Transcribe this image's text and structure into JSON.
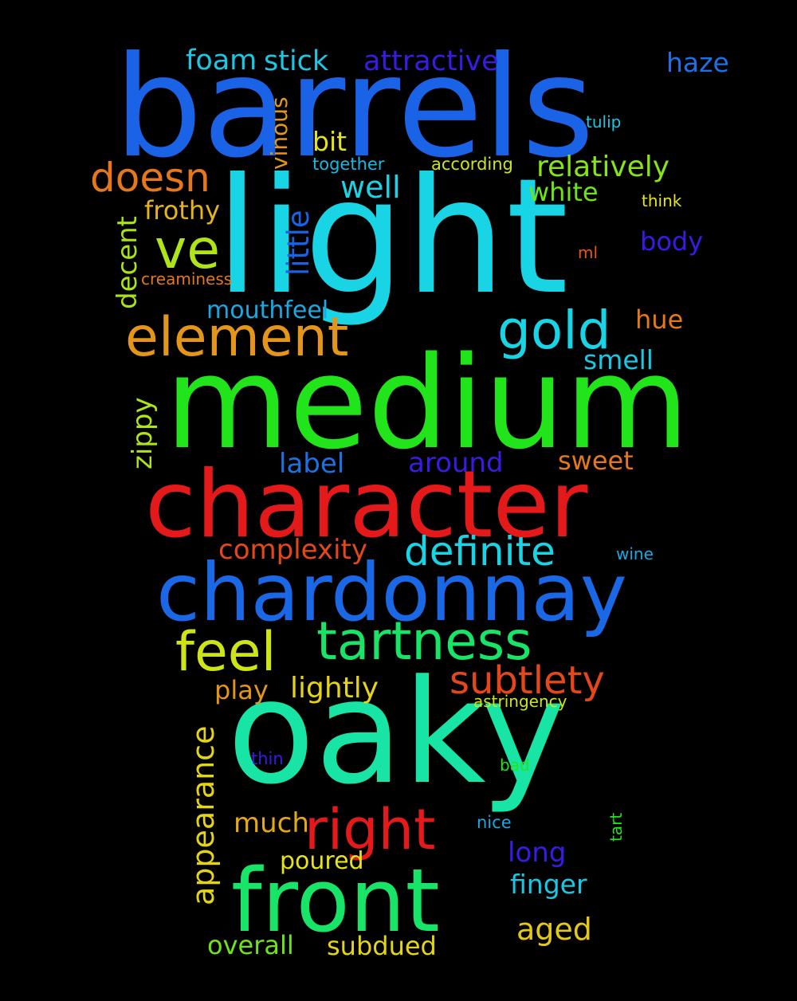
{
  "words": [
    {
      "text": "barrels",
      "color": "#1a62e6"
    },
    {
      "text": "light",
      "color": "#18d4e4"
    },
    {
      "text": "medium",
      "color": "#22e41a"
    },
    {
      "text": "character",
      "color": "#e41a1a"
    },
    {
      "text": "chardonnay",
      "color": "#1a68e6"
    },
    {
      "text": "oaky",
      "color": "#18e4a6"
    },
    {
      "text": "front",
      "color": "#18e468"
    },
    {
      "text": "tartness",
      "color": "#18e468"
    },
    {
      "text": "feel",
      "color": "#cde418"
    },
    {
      "text": "right",
      "color": "#e41a1a"
    },
    {
      "text": "element",
      "color": "#e4961a"
    },
    {
      "text": "gold",
      "color": "#18d4e4"
    },
    {
      "text": "ve",
      "color": "#aee418"
    },
    {
      "text": "definite",
      "color": "#18d4e4"
    },
    {
      "text": "subtlety",
      "color": "#e4481a"
    },
    {
      "text": "doesn",
      "color": "#e4781a"
    },
    {
      "text": "appearance",
      "color": "#e4d418"
    },
    {
      "text": "attractive",
      "color": "#3a1ae4"
    },
    {
      "text": "relatively",
      "color": "#86e418"
    },
    {
      "text": "well",
      "color": "#18d4e4"
    },
    {
      "text": "foam",
      "color": "#18c8e4"
    },
    {
      "text": "stick",
      "color": "#18c8e4"
    },
    {
      "text": "haze",
      "color": "#1a72e6"
    },
    {
      "text": "little",
      "color": "#1a62e6"
    },
    {
      "text": "complexity",
      "color": "#e4481a"
    },
    {
      "text": "lightly",
      "color": "#e4d418"
    },
    {
      "text": "around",
      "color": "#3a1ae4"
    },
    {
      "text": "label",
      "color": "#1a72e6"
    },
    {
      "text": "sweet",
      "color": "#e4781a"
    },
    {
      "text": "mouthfeel",
      "color": "#18a8e4"
    },
    {
      "text": "smell",
      "color": "#18c8e4"
    },
    {
      "text": "hue",
      "color": "#e4781a"
    },
    {
      "text": "body",
      "color": "#3a1ae4"
    },
    {
      "text": "white",
      "color": "#6ee418"
    },
    {
      "text": "frothy",
      "color": "#e4b418"
    },
    {
      "text": "decent",
      "color": "#a8e418"
    },
    {
      "text": "zippy",
      "color": "#aee418"
    },
    {
      "text": "bit",
      "color": "#e4e418"
    },
    {
      "text": "vinous",
      "color": "#e4961a"
    },
    {
      "text": "play",
      "color": "#e4961a"
    },
    {
      "text": "much",
      "color": "#e4a818"
    },
    {
      "text": "poured",
      "color": "#e4e418"
    },
    {
      "text": "long",
      "color": "#3a1ae4"
    },
    {
      "text": "finger",
      "color": "#18c8e4"
    },
    {
      "text": "aged",
      "color": "#e4c818"
    },
    {
      "text": "overall",
      "color": "#6ee418"
    },
    {
      "text": "subdued",
      "color": "#e4d418"
    },
    {
      "text": "together",
      "color": "#18b8e4"
    },
    {
      "text": "according",
      "color": "#cde418"
    },
    {
      "text": "think",
      "color": "#e4e418"
    },
    {
      "text": "tulip",
      "color": "#18c8e4"
    },
    {
      "text": "ml",
      "color": "#e4581a"
    },
    {
      "text": "creaminess",
      "color": "#e4781a"
    },
    {
      "text": "wine",
      "color": "#18a8e4"
    },
    {
      "text": "astringency",
      "color": "#cde418"
    },
    {
      "text": "thin",
      "color": "#3a1ae4"
    },
    {
      "text": "bad",
      "color": "#22e41a"
    },
    {
      "text": "nice",
      "color": "#18a8e4"
    },
    {
      "text": "tart",
      "color": "#22e41a"
    }
  ]
}
